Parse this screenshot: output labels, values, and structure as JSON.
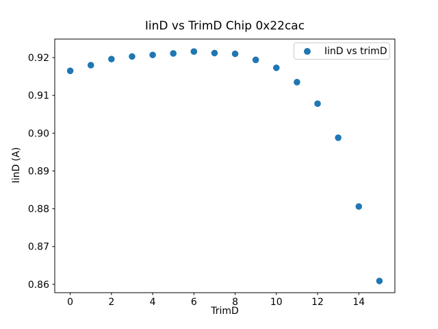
{
  "figure": {
    "background": "#ffffff",
    "text_color": "#000000",
    "spine_color": "#000000",
    "legend_border_color": "#cccccc"
  },
  "chart_data": {
    "type": "scatter",
    "title": "IinD vs TrimD Chip 0x22cac",
    "xlabel": "TrimD",
    "ylabel": "IinD (A)",
    "legend_entries": [
      {
        "label": "IinD vs trimD",
        "marker": "circle",
        "color": "#1f77b4"
      }
    ],
    "legend_position": "upper right",
    "grid": false,
    "marker_color": "#1f77b4",
    "marker_radius_px": 4.8,
    "x": [
      0,
      1,
      2,
      3,
      4,
      5,
      6,
      7,
      8,
      9,
      10,
      11,
      12,
      13,
      14,
      15
    ],
    "y": [
      0.9165,
      0.918,
      0.9196,
      0.9203,
      0.9207,
      0.9211,
      0.9216,
      0.9212,
      0.921,
      0.9194,
      0.9173,
      0.9135,
      0.9078,
      0.8988,
      0.8806,
      0.8609
    ],
    "xlim": [
      -0.75,
      15.75
    ],
    "ylim": [
      0.8578,
      0.9249
    ],
    "xticks": [
      0,
      2,
      4,
      6,
      8,
      10,
      12,
      14
    ],
    "xtick_labels": [
      "0",
      "2",
      "4",
      "6",
      "8",
      "10",
      "12",
      "14"
    ],
    "yticks": [
      0.86,
      0.87,
      0.88,
      0.89,
      0.9,
      0.91,
      0.92
    ],
    "ytick_labels": [
      "0.86",
      "0.87",
      "0.88",
      "0.89",
      "0.90",
      "0.91",
      "0.92"
    ]
  }
}
